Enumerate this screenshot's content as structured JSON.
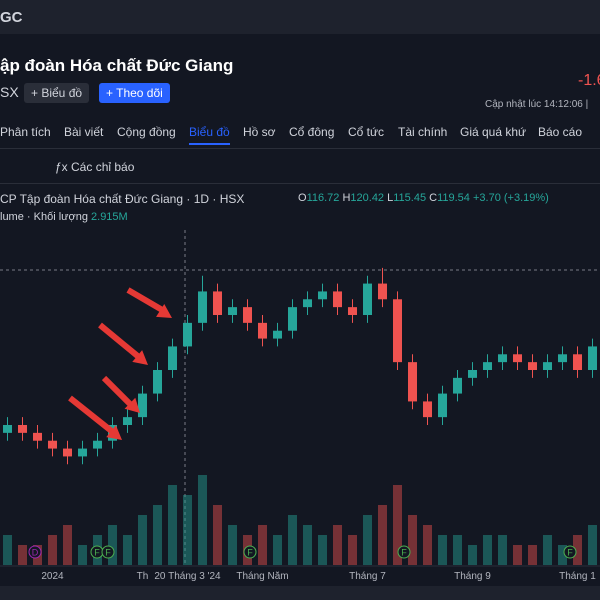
{
  "header": {
    "ticker": "GC",
    "company": "ập đoàn Hóa chất Đức Giang",
    "exchange": "SX",
    "btn_chart": "+ Biểu đồ",
    "btn_follow": "+ Theo dõi",
    "change": "-1.6",
    "updated": "Cập nhật lúc 14:12:06 |"
  },
  "tabs": [
    "Phân tích",
    "Bài viết",
    "Cộng đồng",
    "Biểu đồ",
    "Hồ sơ",
    "Cổ đông",
    "Cổ tức",
    "Tài chính",
    "Giá quá khứ",
    "Báo cáo"
  ],
  "toolbar": {
    "indicators": "Các chỉ báo"
  },
  "chart_header": {
    "symbol": "CP Tập đoàn Hóa chất Đức Giang · 1D · HSX",
    "o_label": "O",
    "o": 116.72,
    "h_label": "H",
    "h": 120.42,
    "l_label": "L",
    "l": 115.45,
    "c_label": "C",
    "c": 119.54,
    "change": "+3.70 (+3.19%)",
    "volume_label": "lume · Khối lượng",
    "volume": "2.915M"
  },
  "events": [
    "D",
    "F",
    "F",
    "F",
    "F",
    "F"
  ],
  "chart_data": {
    "type": "candlestick",
    "categories": [
      null,
      null,
      null,
      "2024",
      null,
      null,
      null,
      null,
      null,
      "Th",
      null,
      null,
      "20 Tháng 3 '24",
      null,
      null,
      null,
      null,
      "Tháng Năm",
      null,
      null,
      null,
      null,
      null,
      null,
      "Tháng 7",
      null,
      null,
      null,
      null,
      null,
      null,
      "Tháng 9",
      null,
      null,
      null,
      null,
      null,
      null,
      "Tháng 1",
      null
    ],
    "open": [
      102,
      103,
      102,
      101,
      100,
      99,
      100,
      101,
      103,
      104,
      107,
      110,
      113,
      116,
      120,
      117,
      118,
      116,
      114,
      115,
      118,
      119,
      120,
      118,
      117,
      121,
      119,
      111,
      106,
      104,
      107,
      109,
      110,
      111,
      112,
      111,
      110,
      111,
      112,
      110
    ],
    "high": [
      104,
      104,
      103,
      102,
      101,
      101,
      102,
      104,
      105,
      108,
      111,
      114,
      117,
      122,
      121,
      119,
      119,
      117,
      116,
      119,
      120,
      121,
      121,
      119,
      122,
      123,
      120,
      112,
      107,
      108,
      110,
      111,
      112,
      113,
      113,
      112,
      112,
      113,
      113,
      114
    ],
    "low": [
      101,
      101,
      100,
      99,
      98,
      98,
      99,
      100,
      102,
      103,
      106,
      109,
      112,
      115,
      116,
      116,
      115,
      113,
      113,
      114,
      117,
      118,
      117,
      116,
      116,
      118,
      110,
      105,
      103,
      103,
      106,
      108,
      109,
      110,
      110,
      109,
      109,
      110,
      109,
      109
    ],
    "close": [
      103,
      102,
      101,
      100,
      99,
      100,
      101,
      103,
      104,
      107,
      110,
      113,
      116,
      120,
      117,
      118,
      116,
      114,
      115,
      118,
      119,
      120,
      118,
      117,
      121,
      119,
      111,
      106,
      104,
      107,
      109,
      110,
      111,
      112,
      111,
      110,
      111,
      112,
      110,
      113
    ],
    "volume": [
      3,
      2,
      2,
      3,
      4,
      2,
      3,
      4,
      3,
      5,
      6,
      8,
      7,
      9,
      6,
      4,
      3,
      4,
      3,
      5,
      4,
      3,
      4,
      3,
      5,
      6,
      8,
      5,
      4,
      3,
      3,
      2,
      3,
      3,
      2,
      2,
      3,
      2,
      3,
      4
    ],
    "ylim": [
      96,
      124
    ],
    "vlim": [
      0,
      12
    ],
    "up_color": "#26a69a",
    "down_color": "#ef5350"
  }
}
